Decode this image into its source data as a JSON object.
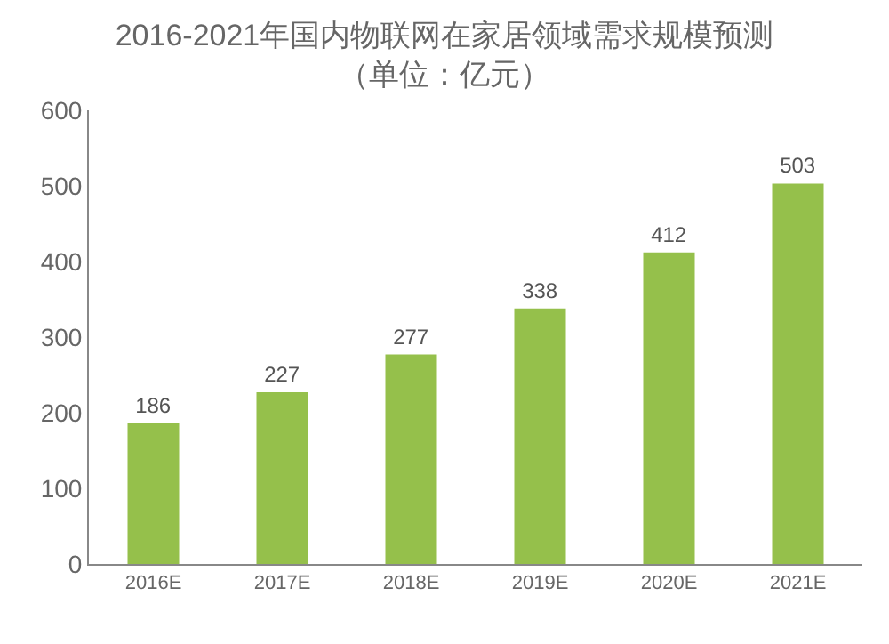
{
  "chart_data": {
    "type": "bar",
    "title": "2016-2021年国内物联网在家居领域需求规模预测",
    "subtitle": "（单位：亿元）",
    "categories": [
      "2016E",
      "2017E",
      "2018E",
      "2019E",
      "2020E",
      "2021E"
    ],
    "values": [
      186,
      227,
      277,
      338,
      412,
      503
    ],
    "color": "#95c04b",
    "ylim": [
      0,
      600
    ],
    "yticks": [
      0,
      100,
      200,
      300,
      400,
      500,
      600
    ],
    "grid": false,
    "data_labels": true
  }
}
